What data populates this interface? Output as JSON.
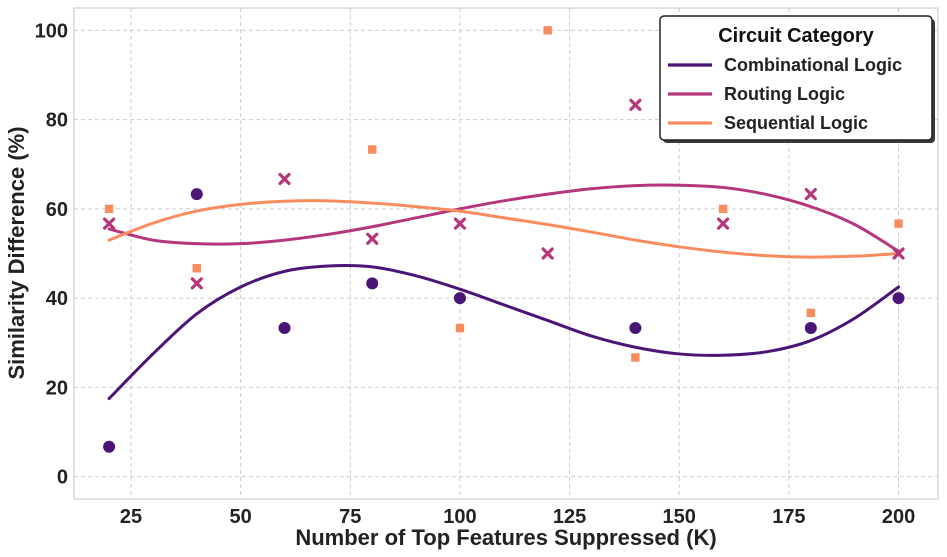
{
  "chart_data": {
    "type": "scatter",
    "title": "",
    "xlabel": "Number of Top Features Suppressed (K)",
    "ylabel": "Similarity Difference (%)",
    "xlim": [
      12,
      209
    ],
    "ylim": [
      -5,
      105
    ],
    "xticks": [
      25,
      50,
      75,
      100,
      125,
      150,
      175,
      200
    ],
    "yticks": [
      0,
      20,
      40,
      60,
      80,
      100
    ],
    "grid": true,
    "legend": {
      "title": "Circuit Category",
      "placement": "top-right"
    },
    "series": [
      {
        "name": "Combinational Logic",
        "color": "#4B1578",
        "marker": "circle",
        "x": [
          20,
          40,
          60,
          80,
          100,
          140,
          180,
          200
        ],
        "y": [
          6.7,
          63.3,
          33.3,
          43.3,
          40.0,
          33.3,
          33.3,
          40.0
        ],
        "trend_x": [
          20,
          30,
          40,
          50,
          60,
          70,
          80,
          90,
          100,
          110,
          120,
          130,
          140,
          150,
          160,
          170,
          180,
          190,
          200
        ],
        "trend_y": [
          17.5,
          27.5,
          36.5,
          42.5,
          46.0,
          47.2,
          47.0,
          45.0,
          42.0,
          38.5,
          35.0,
          31.5,
          29.0,
          27.5,
          27.2,
          28.0,
          30.5,
          35.5,
          42.5
        ]
      },
      {
        "name": "Routing Logic",
        "color": "#B5367A",
        "marker": "x",
        "x": [
          20,
          40,
          60,
          80,
          100,
          120,
          140,
          160,
          180,
          200
        ],
        "y": [
          56.7,
          43.3,
          66.7,
          53.3,
          56.7,
          50.0,
          83.3,
          56.7,
          63.3,
          50.0
        ],
        "trend_x": [
          20,
          30,
          40,
          50,
          60,
          70,
          80,
          90,
          100,
          110,
          120,
          130,
          140,
          150,
          160,
          170,
          180,
          190,
          200
        ],
        "trend_y": [
          55.5,
          53.0,
          52.2,
          52.2,
          53.0,
          54.3,
          56.0,
          58.0,
          60.0,
          61.8,
          63.3,
          64.5,
          65.2,
          65.3,
          64.8,
          63.2,
          60.5,
          56.5,
          50.5
        ]
      },
      {
        "name": "Sequential Logic",
        "color": "#F98C5E",
        "marker": "square",
        "x": [
          20,
          40,
          80,
          100,
          120,
          140,
          160,
          180,
          200
        ],
        "y": [
          60.0,
          46.7,
          73.3,
          33.3,
          100.0,
          26.7,
          60.0,
          36.7,
          56.7
        ],
        "trend_x": [
          20,
          30,
          40,
          50,
          60,
          70,
          80,
          90,
          100,
          110,
          120,
          130,
          140,
          150,
          160,
          170,
          180,
          190,
          200
        ],
        "trend_y": [
          53.0,
          56.8,
          59.5,
          61.0,
          61.7,
          61.8,
          61.3,
          60.5,
          59.5,
          58.0,
          56.5,
          54.8,
          53.0,
          51.5,
          50.3,
          49.5,
          49.2,
          49.4,
          50.0
        ]
      }
    ]
  }
}
